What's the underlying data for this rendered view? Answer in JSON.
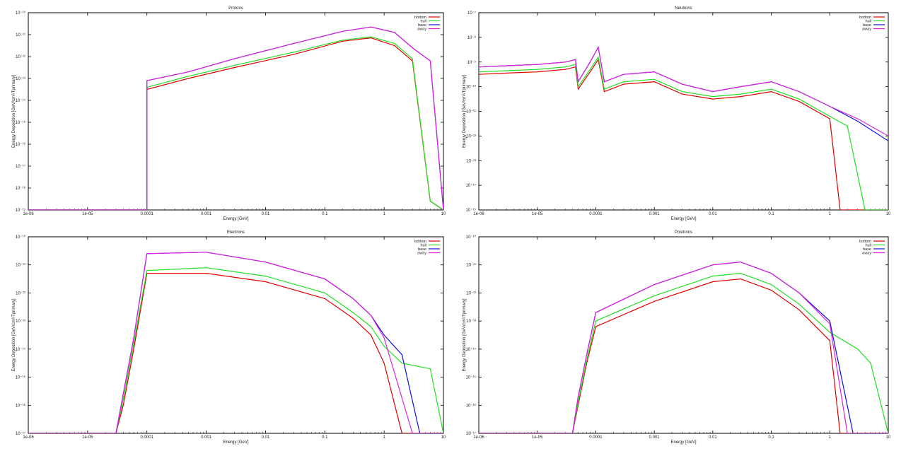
{
  "colors": {
    "bottom": "#e00000",
    "hull": "#22dd22",
    "base": "#1010dd",
    "away": "#dd22dd",
    "axis": "#000000",
    "grid": "#000000"
  },
  "chart_data": [
    {
      "type": "line",
      "title": "Protons",
      "xlabel": "Energy [GeV]",
      "ylabel": "Energy Deposition [GeV/cm²/Tprimary]",
      "xscale": "log",
      "xlim": [
        1e-06,
        10
      ],
      "xtick_labels": [
        "1e-06",
        "1e-05",
        "0.0001",
        "0.001",
        "0.01",
        "0.1",
        "1",
        "10"
      ],
      "ytick_labels": [
        "10⁻¹⁰",
        "10⁻¹¹",
        "10⁻¹²",
        "10⁻¹³",
        "10⁻¹⁴",
        "10⁻¹⁵",
        "10⁻¹⁶",
        "10⁻¹⁷",
        "10⁻¹⁸",
        "10⁻¹⁹"
      ],
      "ylim_decades": [
        0,
        9
      ],
      "legend": [
        "bottom",
        "hull",
        "base",
        "away"
      ],
      "legend_position": "top-right",
      "series": [
        {
          "name": "bottom",
          "x": [
            1e-06,
            0.0001,
            0.0001,
            0.0005,
            0.003,
            0.03,
            0.2,
            0.6,
            1.5,
            3,
            6,
            10
          ],
          "y": [
            9.0,
            9.0,
            3.5,
            3.0,
            2.5,
            1.9,
            1.3,
            1.15,
            1.5,
            2.2,
            8.6,
            9.0
          ]
        },
        {
          "name": "hull",
          "x": [
            1e-06,
            0.0001,
            0.0001,
            0.0005,
            0.003,
            0.03,
            0.2,
            0.6,
            1.5,
            3,
            6,
            10
          ],
          "y": [
            9.0,
            9.0,
            3.4,
            2.9,
            2.4,
            1.8,
            1.25,
            1.1,
            1.4,
            2.1,
            8.6,
            9.0
          ]
        },
        {
          "name": "base",
          "x": [
            1e-06,
            0.0001,
            0.0001,
            0.0005,
            0.003,
            0.03,
            0.2,
            0.6,
            1.5,
            3,
            6,
            10
          ],
          "y": [
            9.0,
            9.0,
            3.1,
            2.7,
            2.1,
            1.4,
            0.85,
            0.65,
            0.9,
            1.6,
            2.2,
            9.0
          ]
        },
        {
          "name": "away",
          "x": [
            1e-06,
            0.0001,
            0.0001,
            0.0005,
            0.003,
            0.03,
            0.2,
            0.6,
            1.5,
            3,
            6,
            10
          ],
          "y": [
            9.0,
            9.0,
            3.1,
            2.7,
            2.1,
            1.4,
            0.85,
            0.65,
            0.9,
            1.6,
            2.2,
            9.0
          ]
        }
      ]
    },
    {
      "type": "line",
      "title": "Neutrons",
      "xlabel": "Energy [GeV]",
      "ylabel": "Energy Deposition [GeV/cm²/Tprimary]",
      "xscale": "log",
      "xlim": [
        1e-06,
        10
      ],
      "xtick_labels": [
        "1e-06",
        "1e-05",
        "0.0001",
        "0.001",
        "0.01",
        "0.1",
        "1",
        "10"
      ],
      "ytick_labels": [
        "10⁻⁷",
        "10⁻⁸",
        "10⁻⁹",
        "10⁻¹⁰",
        "10⁻¹¹",
        "10⁻¹²",
        "10⁻¹³",
        "10⁻¹⁴",
        "10⁻¹⁵"
      ],
      "ylim_decades": [
        0,
        8
      ],
      "legend": [
        "bottom",
        "hull",
        "base",
        "away"
      ],
      "legend_position": "top-right",
      "series": [
        {
          "name": "bottom",
          "x": [
            1e-06,
            3e-06,
            1e-05,
            3e-05,
            4.5e-05,
            5e-05,
            8e-05,
            0.00011,
            0.00014,
            0.0003,
            0.001,
            0.003,
            0.01,
            0.03,
            0.1,
            0.3,
            1,
            1.5,
            3,
            10
          ],
          "y": [
            2.5,
            2.45,
            2.4,
            2.3,
            2.2,
            3.1,
            2.4,
            1.9,
            3.2,
            2.9,
            2.8,
            3.3,
            3.5,
            3.4,
            3.2,
            3.6,
            4.3,
            8.0,
            8.0,
            8.0
          ]
        },
        {
          "name": "hull",
          "x": [
            1e-06,
            3e-06,
            1e-05,
            3e-05,
            4.5e-05,
            5e-05,
            8e-05,
            0.00011,
            0.00014,
            0.0003,
            0.001,
            0.003,
            0.01,
            0.03,
            0.1,
            0.3,
            1,
            2,
            4,
            10
          ],
          "y": [
            2.4,
            2.35,
            2.3,
            2.2,
            2.1,
            3.0,
            2.3,
            1.8,
            3.1,
            2.8,
            2.7,
            3.2,
            3.4,
            3.3,
            3.1,
            3.5,
            4.2,
            4.6,
            8.0,
            8.0
          ]
        },
        {
          "name": "base",
          "x": [
            1e-06,
            3e-06,
            1e-05,
            3e-05,
            4.5e-05,
            5e-05,
            8e-05,
            0.00011,
            0.00014,
            0.0003,
            0.001,
            0.003,
            0.01,
            0.03,
            0.1,
            0.3,
            1,
            3,
            10
          ],
          "y": [
            2.2,
            2.15,
            2.1,
            2.0,
            1.9,
            2.8,
            2.0,
            1.4,
            2.8,
            2.5,
            2.4,
            2.9,
            3.2,
            3.0,
            2.8,
            3.2,
            3.8,
            4.4,
            5.2
          ]
        },
        {
          "name": "away",
          "x": [
            1e-06,
            3e-06,
            1e-05,
            3e-05,
            4.5e-05,
            5e-05,
            8e-05,
            0.00011,
            0.00014,
            0.0003,
            0.001,
            0.003,
            0.01,
            0.03,
            0.1,
            0.3,
            1,
            3,
            10
          ],
          "y": [
            2.2,
            2.15,
            2.1,
            2.0,
            1.9,
            2.8,
            2.0,
            1.4,
            2.8,
            2.5,
            2.4,
            2.9,
            3.2,
            3.0,
            2.8,
            3.2,
            3.8,
            4.3,
            5.0
          ]
        }
      ]
    },
    {
      "type": "line",
      "title": "Electrons",
      "xlabel": "Energy [GeV]",
      "ylabel": "Energy Deposition [GeV/cm²/Tprimary]",
      "xscale": "log",
      "xlim": [
        1e-06,
        10
      ],
      "xtick_labels": [
        "1e-06",
        "1e-05",
        "0.0001",
        "0.001",
        "0.01",
        "0.1",
        "1",
        "10"
      ],
      "ytick_labels": [
        "10⁻¹⁰",
        "10⁻¹¹",
        "10⁻¹²",
        "10⁻¹³",
        "10⁻¹⁴",
        "10⁻¹⁵",
        "10⁻¹⁶",
        "10⁻¹⁷"
      ],
      "ylim_decades": [
        0,
        7
      ],
      "legend": [
        "bottom",
        "hull",
        "base",
        "away"
      ],
      "legend_position": "top-right",
      "series": [
        {
          "name": "bottom",
          "x": [
            1e-06,
            3e-05,
            4e-05,
            6e-05,
            0.0001,
            0.001,
            0.01,
            0.1,
            0.3,
            0.6,
            1,
            2,
            10
          ],
          "y": [
            7.0,
            7.0,
            6.0,
            4.0,
            1.3,
            1.3,
            1.6,
            2.2,
            2.9,
            3.5,
            4.5,
            7.0,
            7.0
          ]
        },
        {
          "name": "hull",
          "x": [
            1e-06,
            3e-05,
            4e-05,
            6e-05,
            0.0001,
            0.001,
            0.01,
            0.1,
            0.3,
            0.6,
            1,
            2,
            6,
            10
          ],
          "y": [
            7.0,
            7.0,
            5.8,
            3.8,
            1.2,
            1.1,
            1.4,
            2.0,
            2.7,
            3.2,
            3.9,
            4.5,
            4.7,
            7.0
          ]
        },
        {
          "name": "base",
          "x": [
            1e-06,
            3e-05,
            4e-05,
            6e-05,
            0.0001,
            0.001,
            0.01,
            0.1,
            0.3,
            0.6,
            1,
            2,
            4,
            10
          ],
          "y": [
            7.0,
            7.0,
            5.6,
            3.6,
            0.6,
            0.55,
            0.9,
            1.5,
            2.2,
            2.8,
            3.5,
            4.2,
            7.0,
            7.0
          ]
        },
        {
          "name": "away",
          "x": [
            1e-06,
            3e-05,
            4e-05,
            6e-05,
            0.0001,
            0.001,
            0.01,
            0.1,
            0.3,
            0.6,
            1,
            3,
            10
          ],
          "y": [
            7.0,
            7.0,
            5.6,
            3.6,
            0.6,
            0.55,
            0.9,
            1.5,
            2.2,
            2.8,
            3.6,
            7.0,
            7.0
          ]
        }
      ]
    },
    {
      "type": "line",
      "title": "Positrons",
      "xlabel": "Energy [GeV]",
      "ylabel": "Energy Deposition [GeV/cm²/Tprimary]",
      "xscale": "log",
      "xlim": [
        1e-06,
        10
      ],
      "xtick_labels": [
        "1e-06",
        "1e-05",
        "0.0001",
        "0.001",
        "0.01",
        "0.1",
        "1",
        "10"
      ],
      "ytick_labels": [
        "10⁻¹⁰",
        "10⁻¹¹",
        "10⁻¹²",
        "10⁻¹³",
        "10⁻¹⁴",
        "10⁻¹⁵",
        "10⁻¹⁶",
        "10⁻¹⁷"
      ],
      "ylim_decades": [
        0,
        7
      ],
      "legend": [
        "bottom",
        "hull",
        "base",
        "away"
      ],
      "legend_position": "top-right",
      "series": [
        {
          "name": "bottom",
          "x": [
            1e-06,
            4e-05,
            5e-05,
            7e-05,
            0.0001,
            0.001,
            0.01,
            0.03,
            0.1,
            0.3,
            1,
            1.5,
            10
          ],
          "y": [
            7.0,
            7.0,
            6.0,
            4.5,
            3.2,
            2.3,
            1.6,
            1.5,
            1.9,
            2.6,
            3.7,
            7.0,
            7.0
          ]
        },
        {
          "name": "hull",
          "x": [
            1e-06,
            4e-05,
            5e-05,
            7e-05,
            0.0001,
            0.001,
            0.01,
            0.03,
            0.1,
            0.3,
            1,
            3,
            5,
            10
          ],
          "y": [
            7.0,
            7.0,
            5.9,
            4.4,
            3.0,
            2.1,
            1.4,
            1.3,
            1.7,
            2.4,
            3.4,
            4.0,
            4.5,
            7.0
          ]
        },
        {
          "name": "base",
          "x": [
            1e-06,
            4e-05,
            5e-05,
            7e-05,
            0.0001,
            0.001,
            0.01,
            0.03,
            0.1,
            0.3,
            1,
            2.5,
            10
          ],
          "y": [
            7.0,
            7.0,
            5.7,
            4.2,
            2.7,
            1.7,
            1.0,
            0.9,
            1.3,
            2.0,
            3.0,
            7.0,
            7.0
          ]
        },
        {
          "name": "away",
          "x": [
            1e-06,
            4e-05,
            5e-05,
            7e-05,
            0.0001,
            0.001,
            0.01,
            0.03,
            0.1,
            0.3,
            1,
            2,
            10
          ],
          "y": [
            7.0,
            7.0,
            5.7,
            4.2,
            2.7,
            1.7,
            1.0,
            0.9,
            1.3,
            2.0,
            3.1,
            7.0,
            7.0
          ]
        }
      ]
    }
  ]
}
